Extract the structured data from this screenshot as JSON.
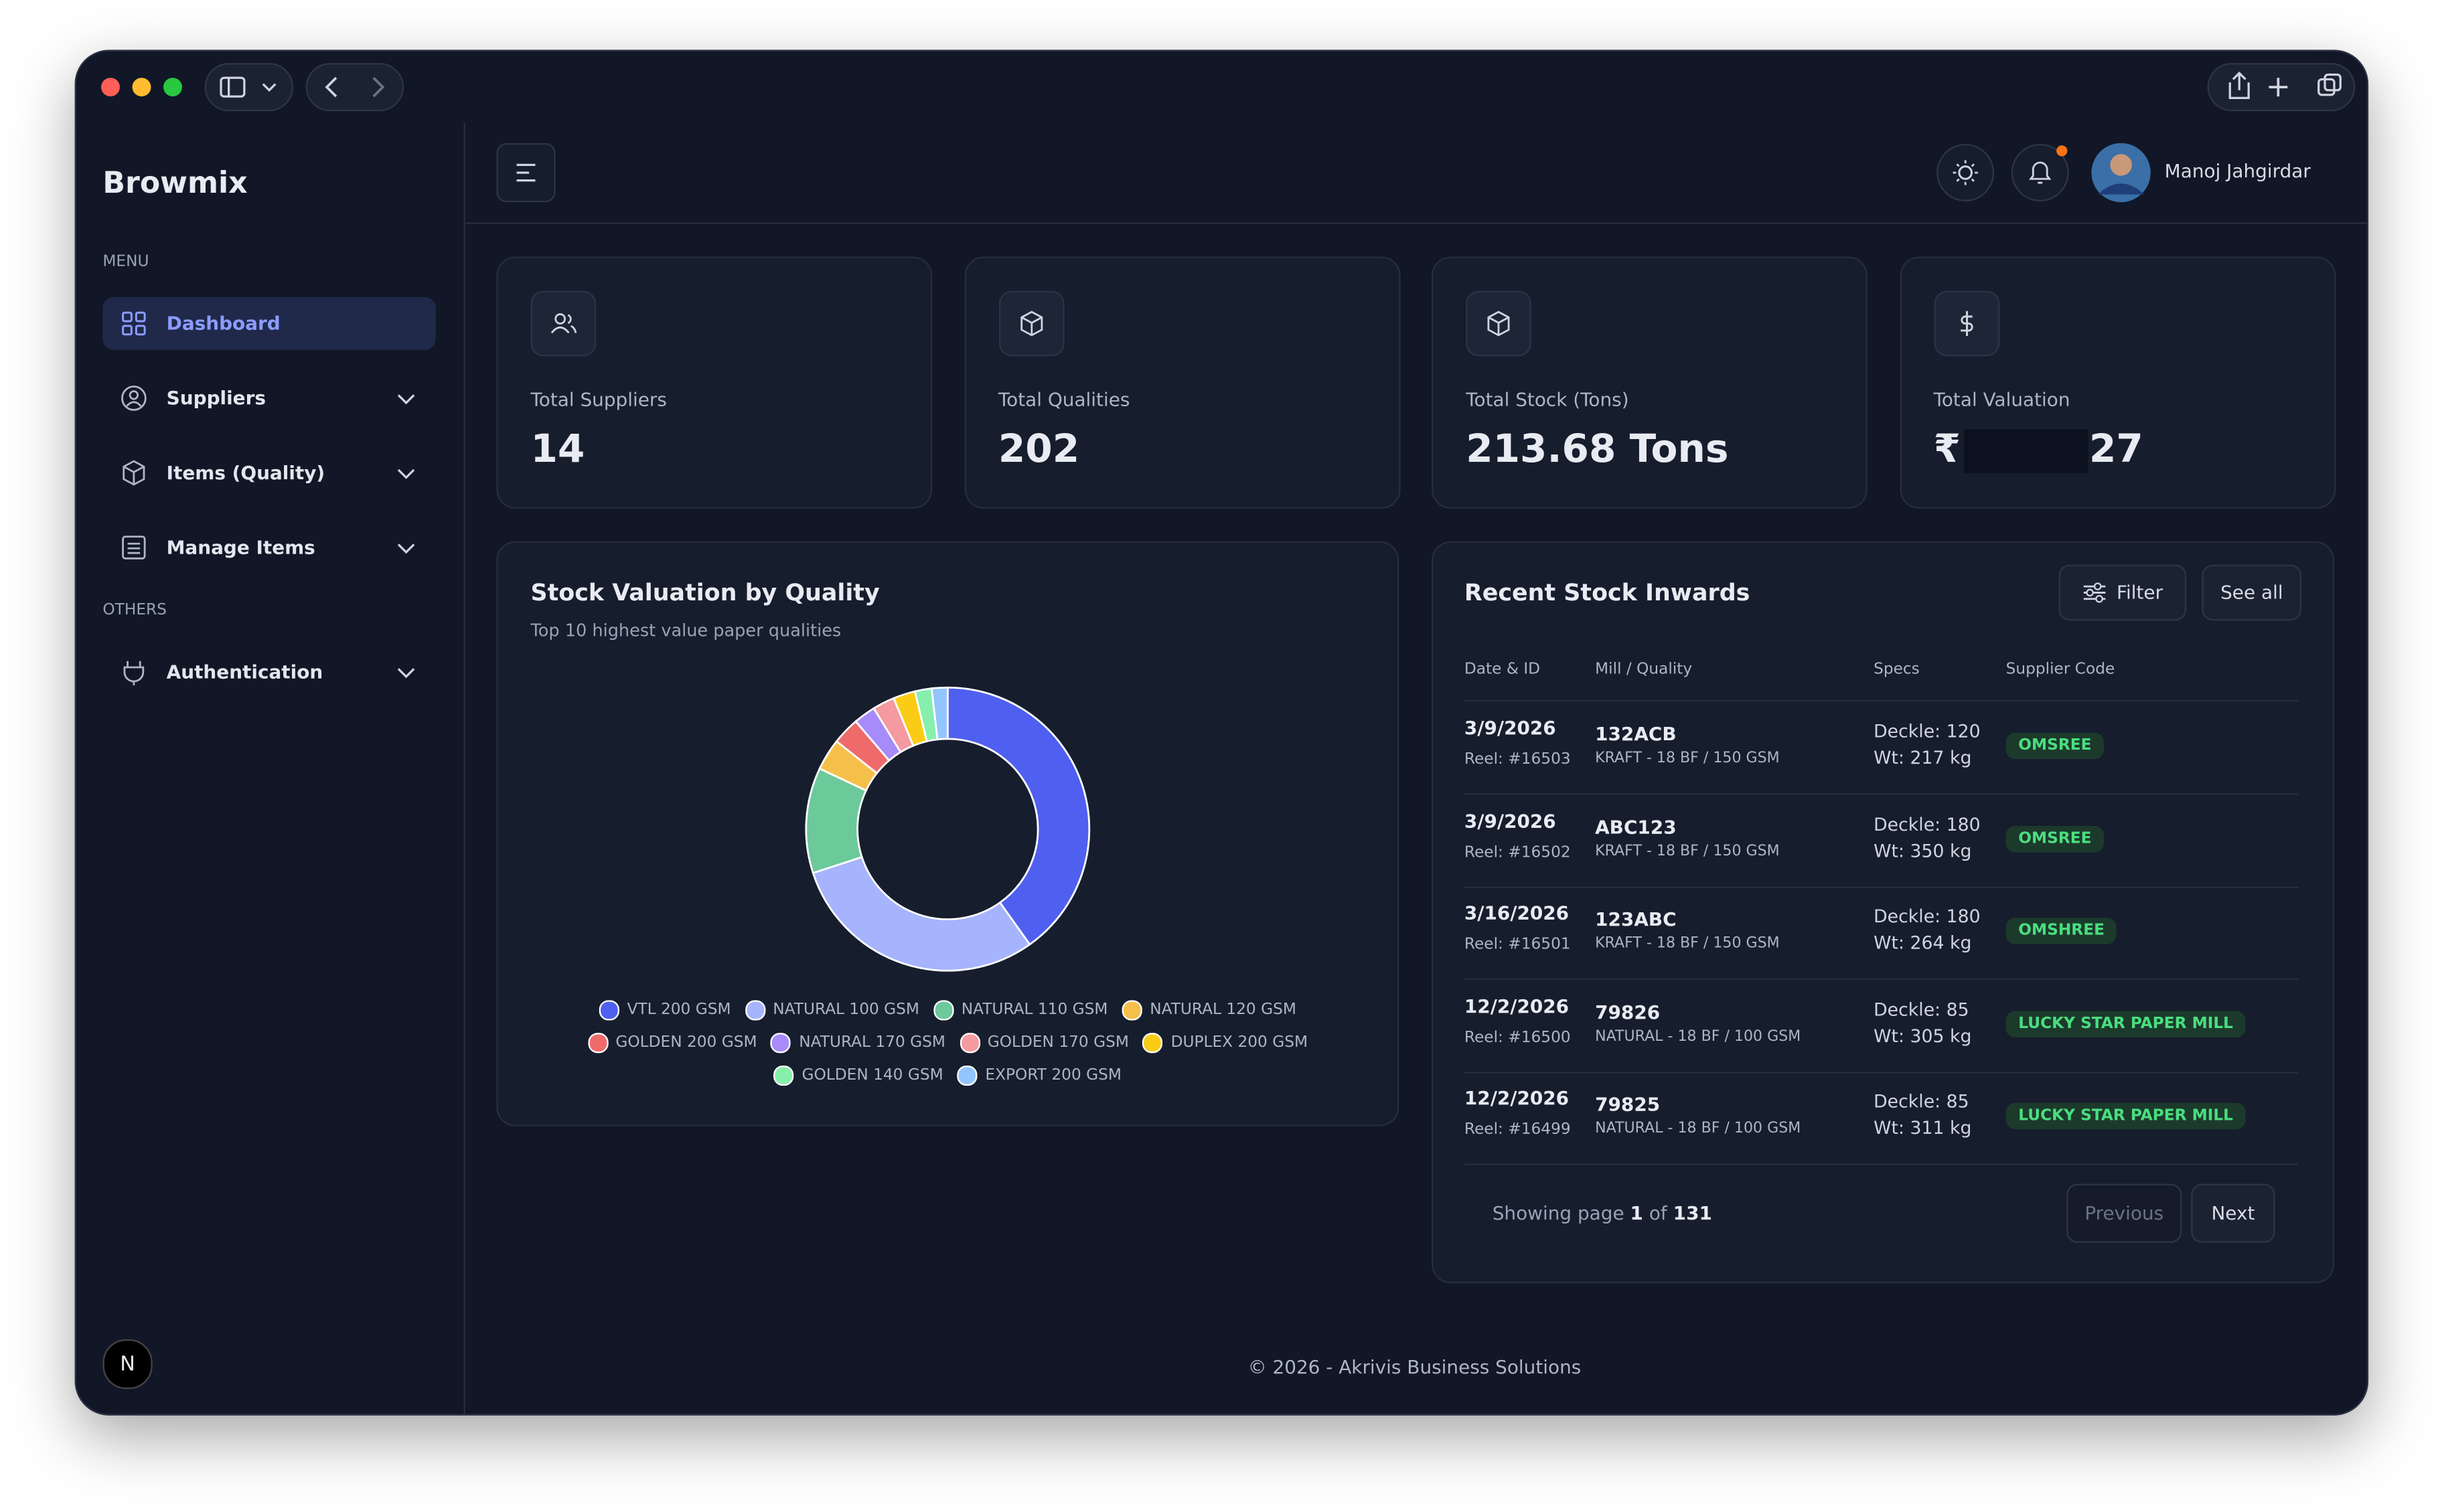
{
  "sidebar": {
    "brand": "Browmix",
    "menu_heading": "MENU",
    "menu": [
      "Dashboard",
      "Suppliers",
      "Items (Quality)",
      "Manage Items"
    ],
    "others_heading": "OTHERS",
    "others": [
      "Authentication"
    ],
    "badge": "N"
  },
  "header": {
    "user_name": "Manoj Jahgirdar"
  },
  "stats": [
    {
      "label": "Total Suppliers",
      "value": "14"
    },
    {
      "label": "Total Qualities",
      "value": "202"
    },
    {
      "label": "Total Stock (Tons)",
      "value": "213.68 Tons"
    },
    {
      "label": "Total Valuation",
      "value_prefix": "₹",
      "value_suffix": "27"
    }
  ],
  "chart_data": {
    "type": "donut",
    "title": "Stock Valuation by Quality",
    "subtitle": "Top 10 highest value paper qualities",
    "categories": [
      "VTL 200 GSM",
      "NATURAL 100 GSM",
      "NATURAL 110 GSM",
      "NATURAL 120 GSM",
      "GOLDEN 200 GSM",
      "NATURAL 170 GSM",
      "GOLDEN 170 GSM",
      "DUPLEX 200 GSM",
      "GOLDEN 140 GSM",
      "EXPORT 200 GSM"
    ],
    "values": [
      40,
      29.7,
      12,
      3.6,
      3.1,
      2.5,
      2.5,
      2.5,
      1.9,
      1.8
    ],
    "colors": [
      "#4f5ff0",
      "#a5b4fc",
      "#6cc99a",
      "#f5c04a",
      "#ef6b6b",
      "#a78bfa",
      "#f49aa0",
      "#facc15",
      "#86efac",
      "#93c5fd"
    ]
  },
  "table": {
    "title": "Recent Stock Inwards",
    "filter": "Filter",
    "see_all": "See all",
    "columns": [
      "Date & ID",
      "Mill / Quality",
      "Specs",
      "Supplier Code"
    ],
    "rows": [
      [
        "3/9/2026",
        "Reel: #16503",
        "132ACB",
        "KRAFT - 18 BF / 150 GSM",
        "Deckle: 120",
        "Wt: 217 kg",
        "OMSREE"
      ],
      [
        "3/9/2026",
        "Reel: #16502",
        "ABC123",
        "KRAFT - 18 BF / 150 GSM",
        "Deckle: 180",
        "Wt: 350 kg",
        "OMSREE"
      ],
      [
        "3/16/2026",
        "Reel: #16501",
        "123ABC",
        "KRAFT - 18 BF / 150 GSM",
        "Deckle: 180",
        "Wt: 264 kg",
        "OMSHREE"
      ],
      [
        "12/2/2026",
        "Reel: #16500",
        "79826",
        "NATURAL - 18 BF / 100 GSM",
        "Deckle: 85",
        "Wt: 305 kg",
        "LUCKY STAR PAPER MILL"
      ],
      [
        "12/2/2026",
        "Reel: #16499",
        "79825",
        "NATURAL - 18 BF / 100 GSM",
        "Deckle: 85",
        "Wt: 311 kg",
        "LUCKY STAR PAPER MILL"
      ]
    ]
  },
  "pagination": {
    "showing": "Showing page",
    "page": "1",
    "of": "of",
    "total": "131",
    "previous": "Previous",
    "next": "Next"
  },
  "footer": "© 2026 - Akrivis Business Solutions"
}
